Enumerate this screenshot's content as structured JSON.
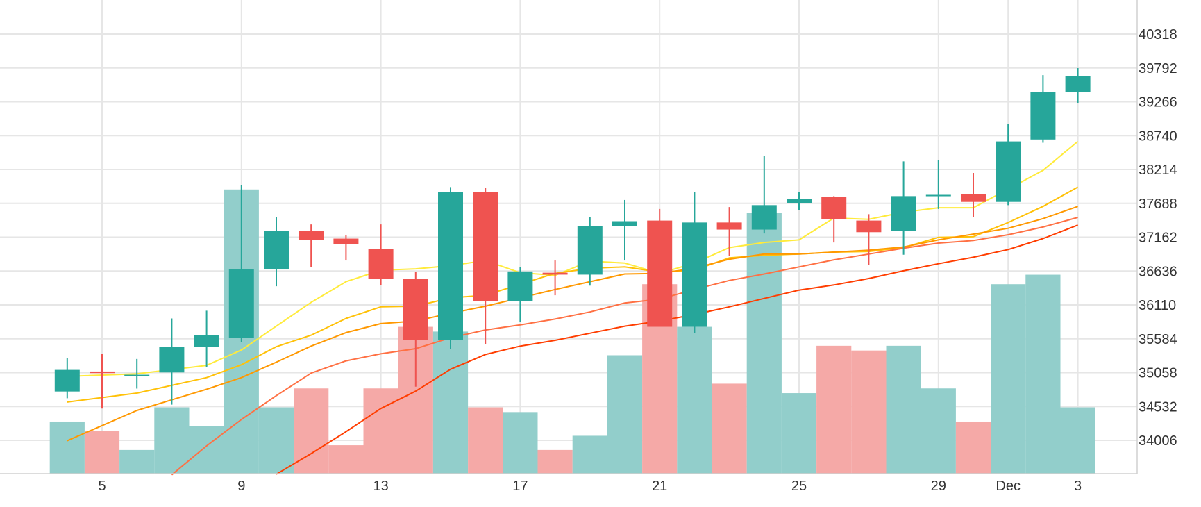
{
  "chart_data": {
    "type": "candlestick",
    "x_tick_labels": [
      "5",
      "9",
      "13",
      "17",
      "21",
      "25",
      "29",
      "Dec",
      "3"
    ],
    "x_tick_dates": [
      "2021-11-05",
      "2021-11-09",
      "2021-11-13",
      "2021-11-17",
      "2021-11-21",
      "2021-11-25",
      "2021-11-29",
      "2021-12-01",
      "2021-12-03"
    ],
    "y_tick_values": [
      34006,
      34532,
      35058,
      35584,
      36110,
      36636,
      37162,
      37688,
      38214,
      38740,
      39266,
      39792,
      40318
    ],
    "y_range": [
      33480,
      40850
    ],
    "grid": true,
    "candles": [
      {
        "date": "2021-11-04",
        "open": 34765,
        "close": 35100,
        "high": 35290,
        "low": 34660
      },
      {
        "date": "2021-11-05",
        "open": 35075,
        "close": 35050,
        "high": 35350,
        "low": 34500
      },
      {
        "date": "2021-11-06",
        "open": 35025,
        "close": 35025,
        "high": 35270,
        "low": 34810
      },
      {
        "date": "2021-11-07",
        "open": 35060,
        "close": 35460,
        "high": 35900,
        "low": 34560
      },
      {
        "date": "2021-11-08",
        "open": 35460,
        "close": 35640,
        "high": 36020,
        "low": 35140
      },
      {
        "date": "2021-11-09",
        "open": 35600,
        "close": 36660,
        "high": 37970,
        "low": 35530
      },
      {
        "date": "2021-11-10",
        "open": 36660,
        "close": 37260,
        "high": 37470,
        "low": 36400
      },
      {
        "date": "2021-11-11",
        "open": 37260,
        "close": 37120,
        "high": 37360,
        "low": 36700
      },
      {
        "date": "2021-11-12",
        "open": 37140,
        "close": 37050,
        "high": 37200,
        "low": 36800
      },
      {
        "date": "2021-11-13",
        "open": 36980,
        "close": 36510,
        "high": 37360,
        "low": 36420
      },
      {
        "date": "2021-11-14",
        "open": 36510,
        "close": 35560,
        "high": 36620,
        "low": 34840
      },
      {
        "date": "2021-11-15",
        "open": 35560,
        "close": 37860,
        "high": 37940,
        "low": 35420
      },
      {
        "date": "2021-11-16",
        "open": 37860,
        "close": 36170,
        "high": 37930,
        "low": 35500
      },
      {
        "date": "2021-11-17",
        "open": 36170,
        "close": 36630,
        "high": 36700,
        "low": 35850
      },
      {
        "date": "2021-11-18",
        "open": 36610,
        "close": 36580,
        "high": 36800,
        "low": 36260
      },
      {
        "date": "2021-11-19",
        "open": 36580,
        "close": 37340,
        "high": 37480,
        "low": 36410
      },
      {
        "date": "2021-11-20",
        "open": 37340,
        "close": 37410,
        "high": 37740,
        "low": 36800
      },
      {
        "date": "2021-11-21",
        "open": 37420,
        "close": 35770,
        "high": 37600,
        "low": 35770
      },
      {
        "date": "2021-11-22",
        "open": 35770,
        "close": 37390,
        "high": 37860,
        "low": 35670
      },
      {
        "date": "2021-11-23",
        "open": 37390,
        "close": 37280,
        "high": 37630,
        "low": 36870
      },
      {
        "date": "2021-11-24",
        "open": 37280,
        "close": 37660,
        "high": 38420,
        "low": 37220
      },
      {
        "date": "2021-11-25",
        "open": 37690,
        "close": 37750,
        "high": 37860,
        "low": 37580
      },
      {
        "date": "2021-11-26",
        "open": 37790,
        "close": 37440,
        "high": 37800,
        "low": 37080
      },
      {
        "date": "2021-11-27",
        "open": 37420,
        "close": 37240,
        "high": 37520,
        "low": 36730
      },
      {
        "date": "2021-11-28",
        "open": 37260,
        "close": 37800,
        "high": 38340,
        "low": 36890
      },
      {
        "date": "2021-11-29",
        "open": 37820,
        "close": 37820,
        "high": 38360,
        "low": 37600
      },
      {
        "date": "2021-11-30",
        "open": 37830,
        "close": 37710,
        "high": 38160,
        "low": 37480
      },
      {
        "date": "2021-12-01",
        "open": 37710,
        "close": 38650,
        "high": 38920,
        "low": 37660
      },
      {
        "date": "2021-12-02",
        "open": 38680,
        "close": 39420,
        "high": 39680,
        "low": 38630
      },
      {
        "date": "2021-12-03",
        "open": 39420,
        "close": 39670,
        "high": 39790,
        "low": 39250
      }
    ],
    "volume_bar_heights": [
      0.11,
      0.09,
      0.05,
      0.14,
      0.1,
      0.6,
      0.14,
      0.18,
      0.06,
      0.18,
      0.31,
      0.3,
      0.14,
      0.13,
      0.05,
      0.08,
      0.25,
      0.4,
      0.31,
      0.19,
      0.55,
      0.17,
      0.27,
      0.26,
      0.27,
      0.18,
      0.11,
      0.4,
      0.42,
      0.14
    ],
    "moving_averages": [
      {
        "color": "#ffeb3b",
        "points": [
          [
            "2021-11-04",
            35000
          ],
          [
            "2021-11-06",
            35040
          ],
          [
            "2021-11-08",
            35170
          ],
          [
            "2021-11-09",
            35410
          ],
          [
            "2021-11-10",
            35780
          ],
          [
            "2021-11-11",
            36150
          ],
          [
            "2021-11-12",
            36470
          ],
          [
            "2021-11-13",
            36650
          ],
          [
            "2021-11-14",
            36670
          ],
          [
            "2021-11-15",
            36720
          ],
          [
            "2021-11-16",
            36800
          ],
          [
            "2021-11-17",
            36610
          ],
          [
            "2021-11-18",
            36570
          ],
          [
            "2021-11-19",
            36790
          ],
          [
            "2021-11-20",
            36760
          ],
          [
            "2021-11-21",
            36600
          ],
          [
            "2021-11-22",
            36760
          ],
          [
            "2021-11-23",
            37000
          ],
          [
            "2021-11-24",
            37080
          ],
          [
            "2021-11-25",
            37120
          ],
          [
            "2021-11-26",
            37460
          ],
          [
            "2021-11-27",
            37440
          ],
          [
            "2021-11-28",
            37550
          ],
          [
            "2021-11-29",
            37620
          ],
          [
            "2021-11-30",
            37620
          ],
          [
            "2021-12-01",
            37910
          ],
          [
            "2021-12-02",
            38200
          ],
          [
            "2021-12-03",
            38650
          ]
        ]
      },
      {
        "color": "#ffc107",
        "points": [
          [
            "2021-11-04",
            34600
          ],
          [
            "2021-11-06",
            34740
          ],
          [
            "2021-11-08",
            34980
          ],
          [
            "2021-11-09",
            35180
          ],
          [
            "2021-11-10",
            35460
          ],
          [
            "2021-11-11",
            35640
          ],
          [
            "2021-11-12",
            35900
          ],
          [
            "2021-11-13",
            36080
          ],
          [
            "2021-11-14",
            36090
          ],
          [
            "2021-11-15",
            36220
          ],
          [
            "2021-11-16",
            36260
          ],
          [
            "2021-11-17",
            36430
          ],
          [
            "2021-11-18",
            36600
          ],
          [
            "2021-11-19",
            36680
          ],
          [
            "2021-11-20",
            36700
          ],
          [
            "2021-11-21",
            36620
          ],
          [
            "2021-11-22",
            36650
          ],
          [
            "2021-11-23",
            36840
          ],
          [
            "2021-11-24",
            36880
          ],
          [
            "2021-11-25",
            36900
          ],
          [
            "2021-11-26",
            36930
          ],
          [
            "2021-11-27",
            36940
          ],
          [
            "2021-11-28",
            37000
          ],
          [
            "2021-11-29",
            37160
          ],
          [
            "2021-11-30",
            37170
          ],
          [
            "2021-12-01",
            37390
          ],
          [
            "2021-12-02",
            37640
          ],
          [
            "2021-12-03",
            37940
          ]
        ]
      },
      {
        "color": "#ff9800",
        "points": [
          [
            "2021-11-04",
            34000
          ],
          [
            "2021-11-06",
            34470
          ],
          [
            "2021-11-08",
            34800
          ],
          [
            "2021-11-09",
            34980
          ],
          [
            "2021-11-10",
            35220
          ],
          [
            "2021-11-11",
            35470
          ],
          [
            "2021-11-12",
            35680
          ],
          [
            "2021-11-13",
            35820
          ],
          [
            "2021-11-14",
            35860
          ],
          [
            "2021-11-15",
            35980
          ],
          [
            "2021-11-16",
            36090
          ],
          [
            "2021-11-17",
            36220
          ],
          [
            "2021-11-18",
            36350
          ],
          [
            "2021-11-19",
            36470
          ],
          [
            "2021-11-20",
            36590
          ],
          [
            "2021-11-21",
            36600
          ],
          [
            "2021-11-22",
            36680
          ],
          [
            "2021-11-23",
            36820
          ],
          [
            "2021-11-24",
            36900
          ],
          [
            "2021-11-25",
            36900
          ],
          [
            "2021-11-26",
            36930
          ],
          [
            "2021-11-27",
            36960
          ],
          [
            "2021-11-28",
            37010
          ],
          [
            "2021-11-29",
            37120
          ],
          [
            "2021-11-30",
            37210
          ],
          [
            "2021-12-01",
            37300
          ],
          [
            "2021-12-02",
            37450
          ],
          [
            "2021-12-03",
            37640
          ]
        ]
      },
      {
        "color": "#ff7043",
        "points": [
          [
            "2021-11-07",
            33470
          ],
          [
            "2021-11-08",
            33920
          ],
          [
            "2021-11-09",
            34330
          ],
          [
            "2021-11-10",
            34700
          ],
          [
            "2021-11-11",
            35050
          ],
          [
            "2021-11-12",
            35240
          ],
          [
            "2021-11-13",
            35350
          ],
          [
            "2021-11-14",
            35430
          ],
          [
            "2021-11-15",
            35600
          ],
          [
            "2021-11-16",
            35720
          ],
          [
            "2021-11-17",
            35800
          ],
          [
            "2021-11-18",
            35890
          ],
          [
            "2021-11-19",
            36000
          ],
          [
            "2021-11-20",
            36140
          ],
          [
            "2021-11-21",
            36200
          ],
          [
            "2021-11-22",
            36350
          ],
          [
            "2021-11-23",
            36490
          ],
          [
            "2021-11-24",
            36590
          ],
          [
            "2021-11-25",
            36700
          ],
          [
            "2021-11-26",
            36810
          ],
          [
            "2021-11-27",
            36900
          ],
          [
            "2021-11-28",
            36990
          ],
          [
            "2021-11-29",
            37070
          ],
          [
            "2021-11-30",
            37110
          ],
          [
            "2021-12-01",
            37200
          ],
          [
            "2021-12-02",
            37320
          ],
          [
            "2021-12-03",
            37470
          ]
        ]
      },
      {
        "color": "#ff3d00",
        "points": [
          [
            "2021-11-10",
            33480
          ],
          [
            "2021-11-11",
            33800
          ],
          [
            "2021-11-12",
            34140
          ],
          [
            "2021-11-13",
            34500
          ],
          [
            "2021-11-14",
            34770
          ],
          [
            "2021-11-15",
            35110
          ],
          [
            "2021-11-16",
            35340
          ],
          [
            "2021-11-17",
            35470
          ],
          [
            "2021-11-18",
            35560
          ],
          [
            "2021-11-19",
            35670
          ],
          [
            "2021-11-20",
            35780
          ],
          [
            "2021-11-21",
            35860
          ],
          [
            "2021-11-22",
            35960
          ],
          [
            "2021-11-23",
            36080
          ],
          [
            "2021-11-24",
            36210
          ],
          [
            "2021-11-25",
            36340
          ],
          [
            "2021-11-26",
            36420
          ],
          [
            "2021-11-27",
            36520
          ],
          [
            "2021-11-28",
            36640
          ],
          [
            "2021-11-29",
            36750
          ],
          [
            "2021-11-30",
            36850
          ],
          [
            "2021-12-01",
            36970
          ],
          [
            "2021-12-02",
            37140
          ],
          [
            "2021-12-03",
            37350
          ]
        ]
      }
    ],
    "colors": {
      "up": "#26a69a",
      "down": "#ef5350",
      "up_volume": "#92cecb",
      "down_volume": "#f5a9a7",
      "grid": "#e6e6e6",
      "axis_text": "#333333"
    }
  }
}
